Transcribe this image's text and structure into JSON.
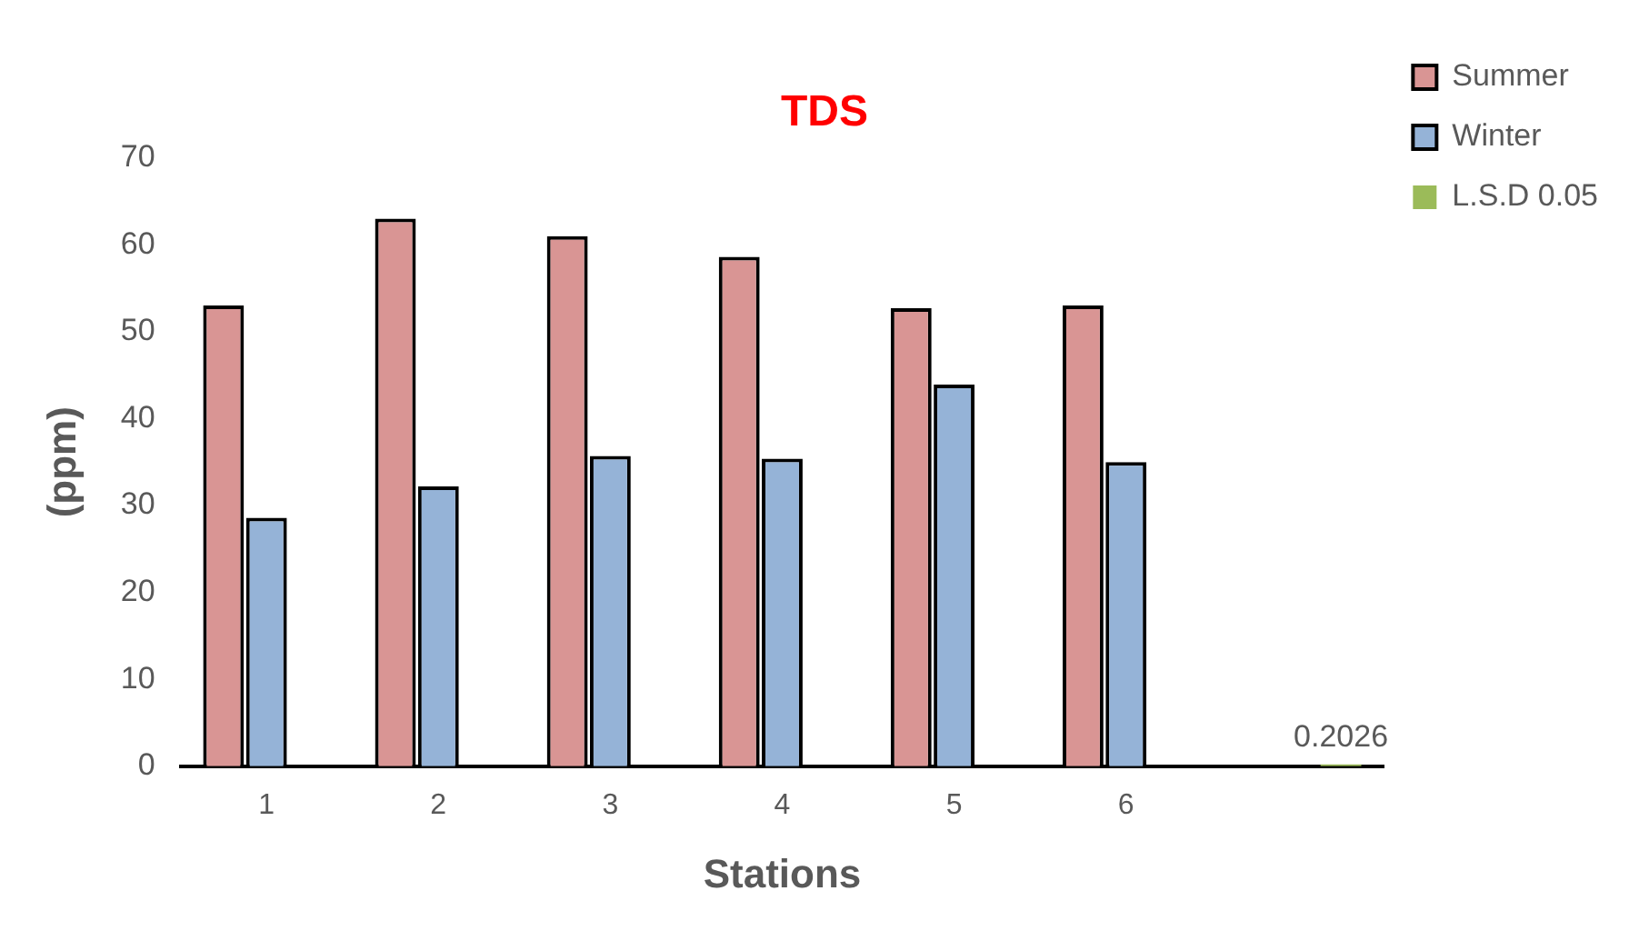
{
  "chart_data": {
    "type": "bar",
    "title": "TDS",
    "xlabel": "Stations",
    "ylabel": "(ppm)",
    "categories": [
      "1",
      "2",
      "3",
      "4",
      "5",
      "6",
      null
    ],
    "series": [
      {
        "name": "Summer",
        "color": "#d99594",
        "values": [
          53.0,
          63.0,
          61.0,
          58.6,
          52.7,
          53.0,
          null
        ]
      },
      {
        "name": "Winter",
        "color": "#95b3d7",
        "values": [
          28.6,
          32.2,
          35.7,
          35.4,
          43.9,
          35.0,
          null
        ]
      },
      {
        "name": "L.S.D 0.05",
        "color": "#9bbb59",
        "values": [
          null,
          null,
          null,
          null,
          null,
          null,
          0.2026
        ],
        "value_labels": [
          null,
          null,
          null,
          null,
          null,
          null,
          "0.2026"
        ]
      }
    ],
    "ylim": [
      0,
      70
    ],
    "yticks": [
      0,
      10,
      20,
      30,
      40,
      50,
      60,
      70
    ],
    "grid": false,
    "legend": "top right"
  }
}
